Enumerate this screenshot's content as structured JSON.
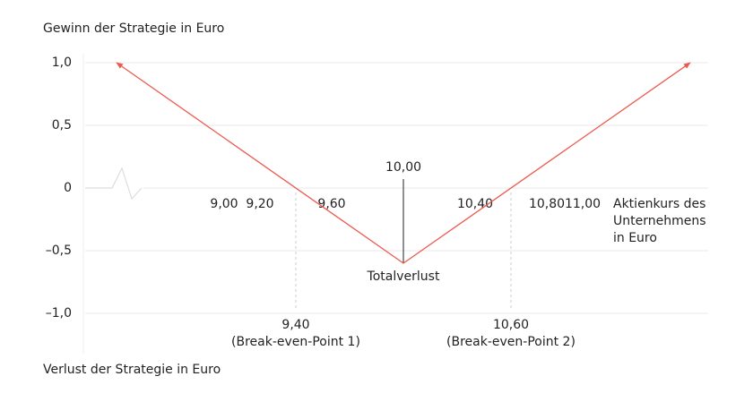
{
  "chart_data": {
    "type": "line",
    "y_title_top": "Gewinn der Strategie in Euro",
    "y_title_bottom": "Verlust der Strategie in Euro",
    "x_label": [
      "Aktienkurs des",
      "Unternehmens",
      "in Euro"
    ],
    "series": [
      {
        "color": "#ec5a4f",
        "x": [
          8.4,
          10.0,
          11.6
        ],
        "values": [
          1.0,
          -0.6,
          1.0
        ]
      }
    ],
    "xlim": [
      8.2,
      11.7
    ],
    "ylim": [
      -1.2,
      1.1
    ],
    "yticks": [
      {
        "value": 1.0,
        "label": "1,0"
      },
      {
        "value": 0.5,
        "label": "0,5"
      },
      0,
      {
        "value": -0.5,
        "label": "–0,5"
      },
      {
        "value": -1.0,
        "label": "–1,0"
      }
    ],
    "xticks": [
      {
        "value": 9.0,
        "label": "9,00"
      },
      {
        "value": 9.2,
        "label": "9,20"
      },
      {
        "value": 9.6,
        "label": "9,60"
      },
      {
        "value": 10.4,
        "label": "10,40"
      },
      {
        "value": 10.8,
        "label": "10,80"
      },
      {
        "value": 11.0,
        "label": "11,00"
      }
    ],
    "vertex_tick": {
      "value": 10.0,
      "label": "10,00"
    },
    "vertex_annotation": "Totalverlust",
    "break_even_points": [
      {
        "x": {
          "value": 9.4,
          "label": "9,40"
        },
        "note": "(Break-even-Point 1)"
      },
      {
        "x": {
          "value": 10.6,
          "label": "10,60"
        },
        "note": "(Break-even-Point 2)"
      }
    ],
    "grid": true
  }
}
